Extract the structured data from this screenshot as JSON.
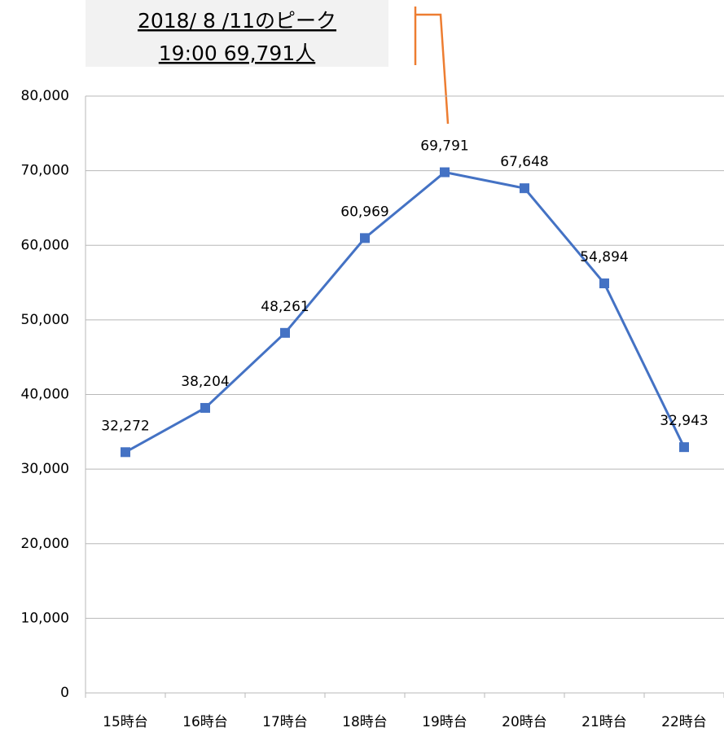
{
  "chart_data": {
    "type": "line",
    "annotation": [
      "2018/ 8 /11のピーク",
      "19:00 69,791人"
    ],
    "categories": [
      "15時台",
      "16時台",
      "17時台",
      "18時台",
      "19時台",
      "20時台",
      "21時台",
      "22時台"
    ],
    "series": [
      {
        "color": "#4472c4",
        "values": [
          32272,
          38204,
          48261,
          60969,
          69791,
          67648,
          54894,
          32943
        ],
        "value_labels": [
          "32,272",
          "38,204",
          "48,261",
          "60,969",
          "69,791",
          "67,648",
          "54,894",
          "32,943"
        ]
      }
    ],
    "ylim": [
      0,
      80000
    ],
    "yticks": [
      0,
      {
        "value": 10000,
        "label": "10,000"
      },
      {
        "value": 20000,
        "label": "20,000"
      },
      {
        "value": 30000,
        "label": "30,000"
      },
      {
        "value": 40000,
        "label": "40,000"
      },
      {
        "value": 50000,
        "label": "50,000"
      },
      {
        "value": 60000,
        "label": "60,000"
      },
      {
        "value": 70000,
        "label": "70,000"
      },
      {
        "value": 80000,
        "label": "80,000"
      }
    ],
    "grid": true
  }
}
